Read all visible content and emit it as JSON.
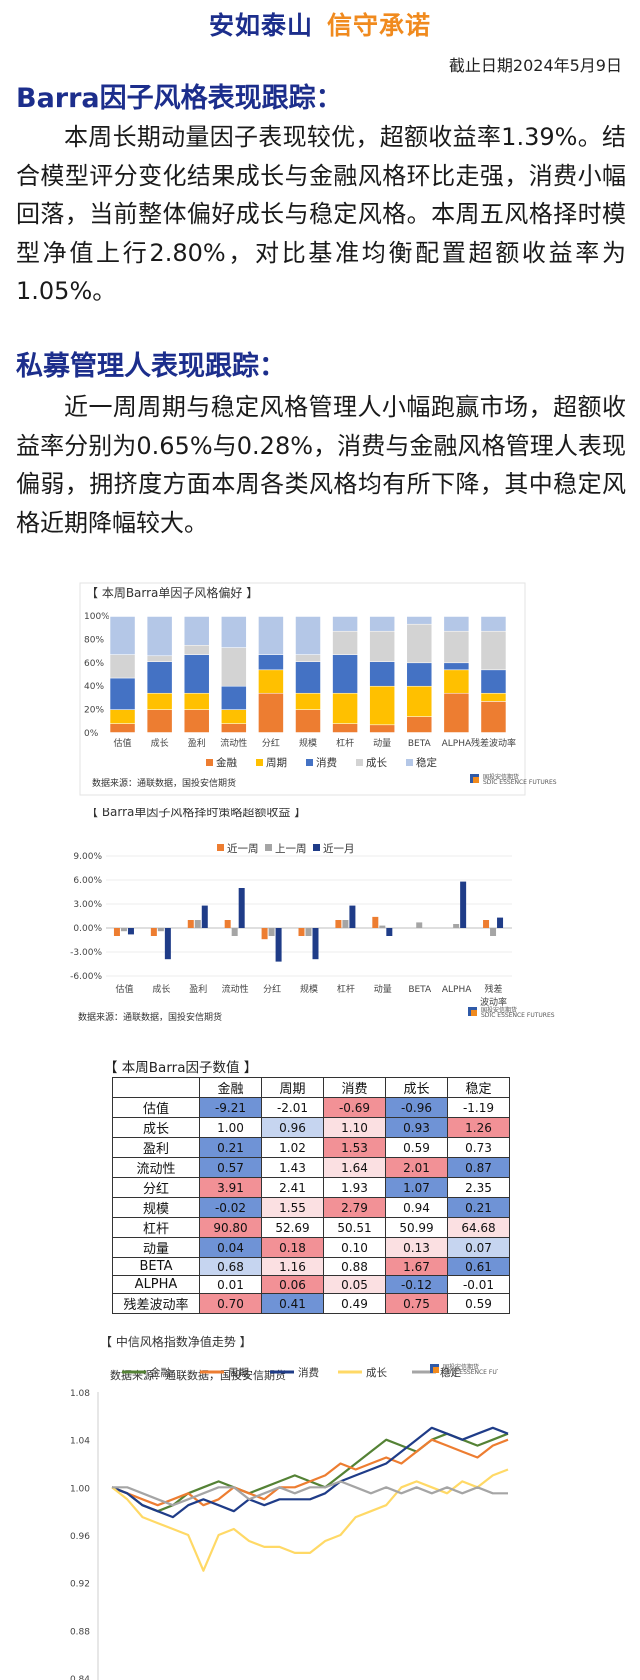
{
  "slogan": {
    "part1": "安如泰山",
    "part2": "信守承诺"
  },
  "date": "截止日期2024年5月9日",
  "section1": {
    "heading": "Barra因子风格表现跟踪：",
    "text": "本周长期动量因子表现较优，超额收益率1.39%。结合模型评分变化结果成长与金融风格环比走强，消费小幅回落，当前整体偏好成长与稳定风格。本周五风格择时模型净值上行2.80%，对比基准均衡配置超额收益率为1.05%。"
  },
  "section2": {
    "heading": "私募管理人表现跟踪：",
    "text": "近一周周期与稳定风格管理人小幅跑赢市场，超额收益率分别为0.65%与0.28%，消费与金融风格管理人表现偏弱，拥挤度方面本周各类风格均有所下降，其中稳定风格近期降幅较大。"
  },
  "logo_text": "国投安信期货",
  "logo_sub": "SDIC ESSENCE FUTURES",
  "colors": {
    "金融": "#ed7d31",
    "周期": "#ffc000",
    "消费": "#4472c4",
    "成长": "#d3d3d3",
    "稳定": "#b4c7e7",
    "green": "#548235",
    "orange": "#ed7d31",
    "navy": "#1f3c88",
    "yellow": "#ffd966",
    "gray": "#a5a5a5"
  },
  "chart_data": [
    {
      "type": "bar",
      "stacked": true,
      "title": "【 本周Barra单因子风格偏好 】",
      "categories": [
        "估值",
        "成长",
        "盈利",
        "流动性",
        "分红",
        "规模",
        "杠杆",
        "动量",
        "BETA",
        "ALPHA",
        "残差波动率"
      ],
      "y_ticks": [
        "0%",
        "20%",
        "40%",
        "60%",
        "80%",
        "100%"
      ],
      "ylim": [
        0,
        100
      ],
      "series": [
        {
          "name": "金融",
          "values": [
            8,
            20,
            20,
            8,
            34,
            20,
            8,
            7,
            14,
            34,
            27
          ]
        },
        {
          "name": "周期",
          "values": [
            12,
            14,
            14,
            12,
            20,
            14,
            26,
            33,
            26,
            20,
            7
          ]
        },
        {
          "name": "消费",
          "values": [
            27,
            27,
            33,
            20,
            13,
            27,
            33,
            21,
            20,
            6,
            20
          ]
        },
        {
          "name": "成长",
          "values": [
            20,
            5,
            8,
            33,
            0,
            6,
            20,
            26,
            33,
            27,
            33
          ]
        },
        {
          "name": "稳定",
          "values": [
            33,
            34,
            25,
            27,
            33,
            33,
            13,
            13,
            7,
            13,
            13
          ]
        }
      ],
      "source": "数据来源：通联数据，国投安信期货"
    },
    {
      "type": "bar",
      "title": "【 Barra单因子风格择时策略超额收益 】",
      "categories": [
        "估值",
        "成长",
        "盈利",
        "流动性",
        "分红",
        "规模",
        "杠杆",
        "动量",
        "BETA",
        "ALPHA",
        "残差\n波动率"
      ],
      "y_ticks": [
        "-6.00%",
        "-3.00%",
        "0.00%",
        "3.00%",
        "6.00%",
        "9.00%"
      ],
      "ylim": [
        -6,
        9
      ],
      "series": [
        {
          "name": "近一周",
          "values": [
            -1.0,
            -1.0,
            1.0,
            1.0,
            -1.4,
            -1.0,
            1.0,
            1.39,
            0,
            0,
            1.0
          ]
        },
        {
          "name": "上一周",
          "values": [
            -0.4,
            -0.4,
            1.0,
            -1.0,
            -1.0,
            -1.0,
            1.0,
            0.3,
            0.7,
            0.5,
            -1.0
          ]
        },
        {
          "name": "近一月",
          "values": [
            -0.8,
            -3.9,
            2.8,
            5.0,
            -4.2,
            -3.9,
            2.8,
            -1.0,
            0,
            5.8,
            1.3
          ]
        }
      ],
      "source": "数据来源：通联数据，国投安信期货"
    },
    {
      "type": "table",
      "title": "【 本周Barra因子数值 】",
      "columns": [
        "金融",
        "周期",
        "消费",
        "成长",
        "稳定"
      ],
      "rows": [
        {
          "label": "估值",
          "values": [
            "-9.21",
            "-2.01",
            "-0.69",
            "-0.96",
            "-1.19"
          ],
          "colors": [
            "#6f93d6",
            "#ffffff",
            "#f29196",
            "#6f93d6",
            "#ffffff"
          ]
        },
        {
          "label": "成长",
          "values": [
            "1.00",
            "0.96",
            "1.10",
            "0.93",
            "1.26"
          ],
          "colors": [
            "#ffffff",
            "#c6d5f0",
            "#fbe0e2",
            "#6f93d6",
            "#f29196"
          ]
        },
        {
          "label": "盈利",
          "values": [
            "0.21",
            "1.02",
            "1.53",
            "0.59",
            "0.73"
          ],
          "colors": [
            "#6f93d6",
            "#ffffff",
            "#f29196",
            "#ffffff",
            "#ffffff"
          ]
        },
        {
          "label": "流动性",
          "values": [
            "0.57",
            "1.43",
            "1.64",
            "2.01",
            "0.87"
          ],
          "colors": [
            "#6f93d6",
            "#ffffff",
            "#fbe0e2",
            "#f29196",
            "#6f93d6"
          ]
        },
        {
          "label": "分红",
          "values": [
            "3.91",
            "2.41",
            "1.93",
            "1.07",
            "2.35"
          ],
          "colors": [
            "#f29196",
            "#ffffff",
            "#ffffff",
            "#6f93d6",
            "#ffffff"
          ]
        },
        {
          "label": "规模",
          "values": [
            "-0.02",
            "1.55",
            "2.79",
            "0.94",
            "0.21"
          ],
          "colors": [
            "#6f93d6",
            "#fbe0e2",
            "#f29196",
            "#ffffff",
            "#6f93d6"
          ]
        },
        {
          "label": "杠杆",
          "values": [
            "90.80",
            "52.69",
            "50.51",
            "50.99",
            "64.68"
          ],
          "colors": [
            "#f29196",
            "#ffffff",
            "#ffffff",
            "#ffffff",
            "#fbe0e2"
          ]
        },
        {
          "label": "动量",
          "values": [
            "0.04",
            "0.18",
            "0.10",
            "0.13",
            "0.07"
          ],
          "colors": [
            "#6f93d6",
            "#f29196",
            "#ffffff",
            "#fbe0e2",
            "#c6d5f0"
          ]
        },
        {
          "label": "BETA",
          "values": [
            "0.68",
            "1.16",
            "0.88",
            "1.67",
            "0.61"
          ],
          "colors": [
            "#c6d5f0",
            "#fbe0e2",
            "#ffffff",
            "#f29196",
            "#6f93d6"
          ]
        },
        {
          "label": "ALPHA",
          "values": [
            "0.01",
            "0.06",
            "0.05",
            "-0.12",
            "-0.01"
          ],
          "colors": [
            "#ffffff",
            "#f29196",
            "#fbe0e2",
            "#6f93d6",
            "#ffffff"
          ]
        },
        {
          "label": "残差波动率",
          "values": [
            "0.70",
            "0.41",
            "0.49",
            "0.75",
            "0.59"
          ],
          "colors": [
            "#f29196",
            "#6f93d6",
            "#ffffff",
            "#f29196",
            "#ffffff"
          ]
        }
      ],
      "source": "数据来源：通联数据，国投安信期货"
    },
    {
      "type": "line",
      "title": "【 中信风格指数净值走势 】",
      "y_ticks": [
        "0.84",
        "0.88",
        "0.92",
        "0.96",
        "1.00",
        "1.04",
        "1.08"
      ],
      "ylim": [
        0.84,
        1.08
      ],
      "series": [
        {
          "name": "金融",
          "values": [
            1.0,
            0.995,
            0.985,
            0.98,
            0.985,
            0.995,
            1.0,
            1.005,
            1.0,
            0.995,
            1.0,
            1.005,
            1.01,
            1.005,
            1.0,
            1.01,
            1.02,
            1.03,
            1.04,
            1.035,
            1.03,
            1.04,
            1.045,
            1.04,
            1.035,
            1.04,
            1.045
          ]
        },
        {
          "name": "周期",
          "values": [
            1.0,
            0.995,
            0.99,
            0.985,
            0.99,
            0.995,
            0.985,
            0.99,
            1.0,
            0.995,
            0.99,
            1.0,
            1.0,
            1.005,
            1.01,
            1.02,
            1.015,
            1.02,
            1.025,
            1.02,
            1.03,
            1.04,
            1.035,
            1.03,
            1.025,
            1.035,
            1.04
          ]
        },
        {
          "name": "消费",
          "values": [
            1.0,
            0.995,
            0.985,
            0.98,
            0.975,
            0.985,
            0.99,
            0.985,
            0.98,
            0.99,
            0.985,
            0.99,
            0.99,
            0.99,
            0.995,
            1.005,
            1.01,
            1.015,
            1.02,
            1.03,
            1.04,
            1.05,
            1.045,
            1.04,
            1.045,
            1.05,
            1.045
          ]
        },
        {
          "name": "成长",
          "values": [
            1.0,
            0.99,
            0.975,
            0.97,
            0.965,
            0.96,
            0.93,
            0.96,
            0.965,
            0.955,
            0.95,
            0.95,
            0.945,
            0.945,
            0.955,
            0.96,
            0.975,
            0.98,
            0.985,
            1.0,
            1.005,
            1.0,
            0.995,
            1.005,
            1.0,
            1.01,
            1.015
          ]
        },
        {
          "name": "稳定",
          "values": [
            1.0,
            1.0,
            0.995,
            0.99,
            0.985,
            0.99,
            0.995,
            1.0,
            1.0,
            0.99,
            0.995,
            1.0,
            0.995,
            1.0,
            1.0,
            1.005,
            1.0,
            0.995,
            1.0,
            0.995,
            1.0,
            0.995,
            1.0,
            0.995,
            1.0,
            0.995,
            0.995
          ]
        }
      ]
    }
  ]
}
